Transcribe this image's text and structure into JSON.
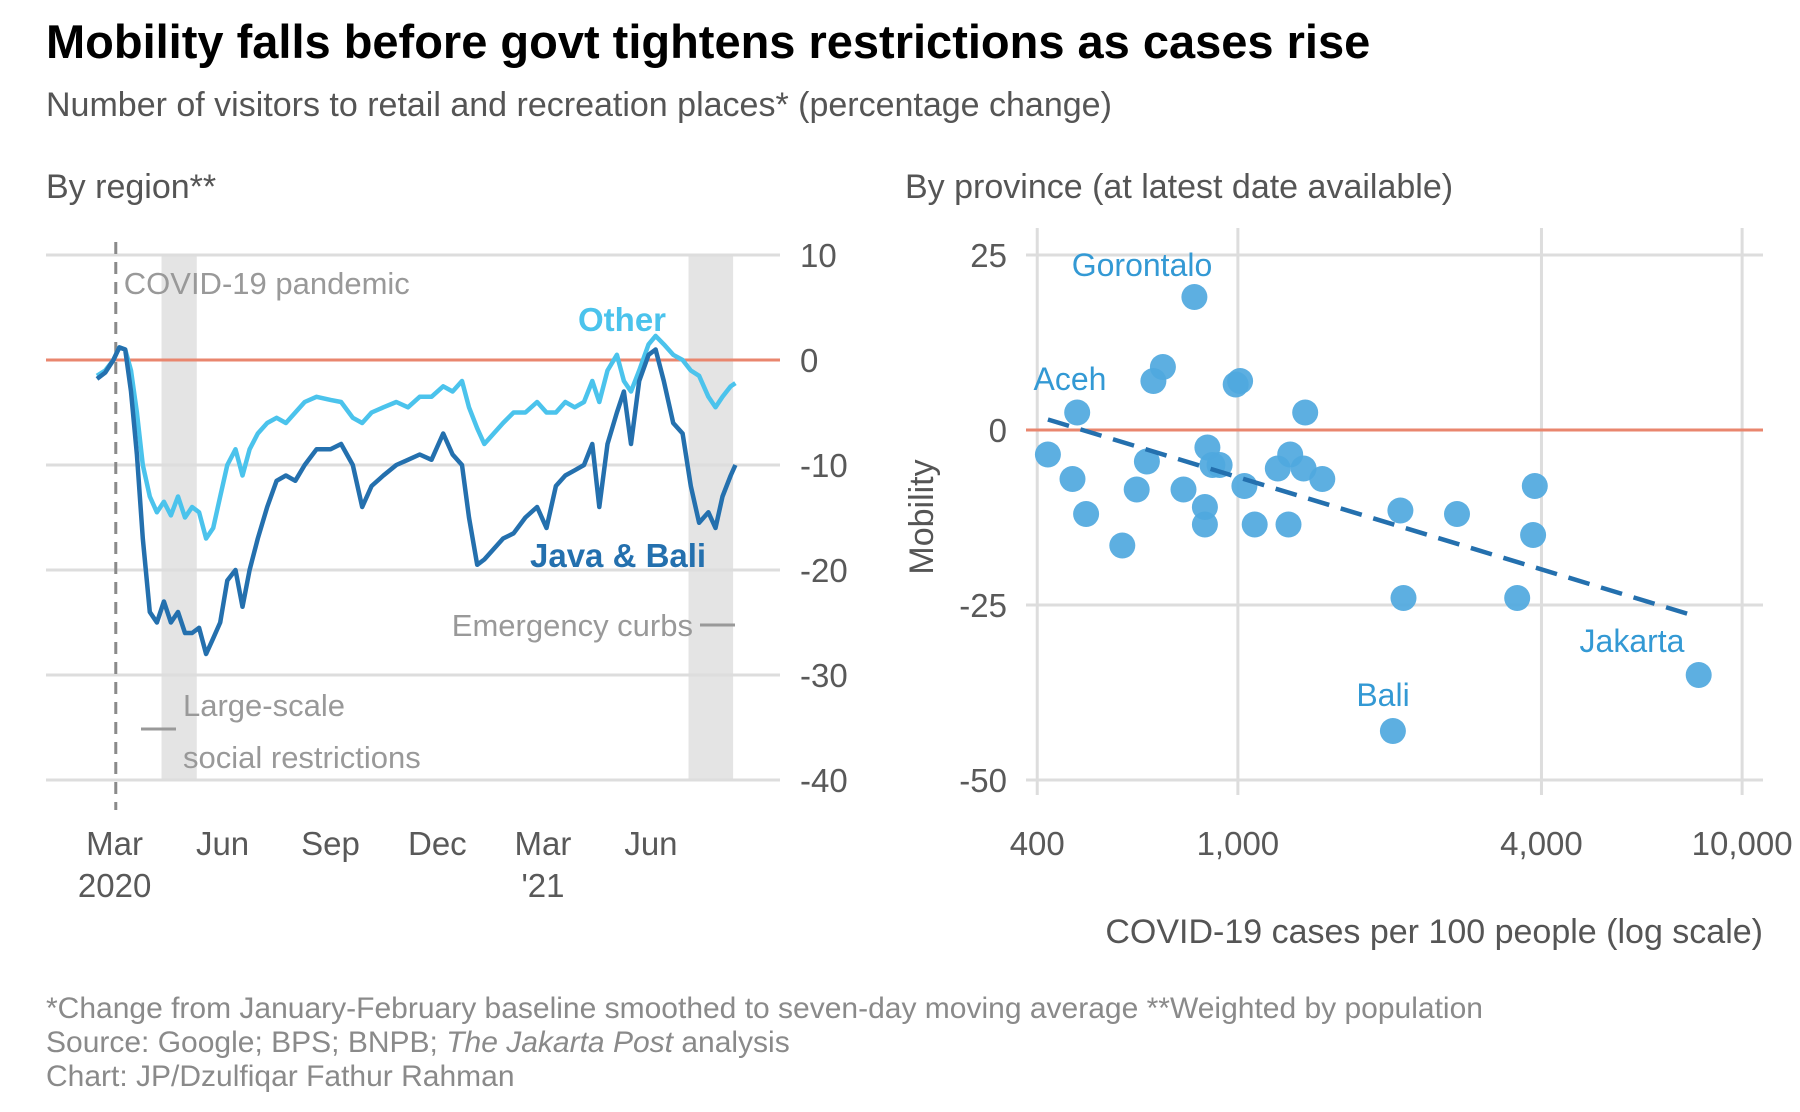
{
  "header": {
    "title": "Mobility falls before govt tightens restrictions as cases rise",
    "subtitle": "Number of visitors to retail and recreation places* (percentage change)"
  },
  "colors": {
    "java_bali": "#2470AE",
    "other": "#4BC3EC",
    "scatter_point": "#4FA8DE",
    "label": "#3399D4",
    "zero_line": "#E9866E",
    "grid": "#DDDDDD",
    "shade": "#E4E4E4",
    "annotation": "#999999",
    "axis_text": "#595959"
  },
  "chart_data": [
    {
      "type": "line",
      "heading": "By region**",
      "ylim": [
        -40,
        10
      ],
      "yticks": [
        10,
        0,
        -10,
        -20,
        -30,
        -40
      ],
      "xlim": [
        "2020-02-15",
        "2021-08-21"
      ],
      "xticks": [
        {
          "date": "2020-03-01",
          "label": [
            "Mar",
            "2020"
          ]
        },
        {
          "date": "2020-06-01",
          "label": [
            "Jun"
          ]
        },
        {
          "date": "2020-09-01",
          "label": [
            "Sep"
          ]
        },
        {
          "date": "2020-12-01",
          "label": [
            "Dec"
          ]
        },
        {
          "date": "2021-03-01",
          "label": [
            "Mar",
            "'21"
          ]
        },
        {
          "date": "2021-06-01",
          "label": [
            "Jun"
          ]
        }
      ],
      "shaded_periods": [
        {
          "start": "2020-04-10",
          "end": "2020-05-10"
        },
        {
          "start": "2021-07-03",
          "end": "2021-08-10"
        }
      ],
      "event_line": {
        "date": "2020-03-02",
        "label": "COVID-19 pandemic"
      },
      "annotations": {
        "emergency": "Emergency curbs",
        "large_scale": [
          "Large-scale",
          "social restrictions"
        ]
      },
      "series": [
        {
          "name": "Other",
          "points": [
            [
              "2020-02-15",
              -1.5
            ],
            [
              "2020-02-22",
              -1
            ],
            [
              "2020-02-29",
              0
            ],
            [
              "2020-03-05",
              1.2
            ],
            [
              "2020-03-10",
              1
            ],
            [
              "2020-03-15",
              -1
            ],
            [
              "2020-03-20",
              -5
            ],
            [
              "2020-03-25",
              -10
            ],
            [
              "2020-03-31",
              -13
            ],
            [
              "2020-04-06",
              -14.5
            ],
            [
              "2020-04-12",
              -13.5
            ],
            [
              "2020-04-18",
              -14.8
            ],
            [
              "2020-04-24",
              -13
            ],
            [
              "2020-04-30",
              -15
            ],
            [
              "2020-05-06",
              -14
            ],
            [
              "2020-05-12",
              -14.5
            ],
            [
              "2020-05-18",
              -17
            ],
            [
              "2020-05-24",
              -16
            ],
            [
              "2020-05-30",
              -13
            ],
            [
              "2020-06-05",
              -10
            ],
            [
              "2020-06-12",
              -8.5
            ],
            [
              "2020-06-18",
              -11
            ],
            [
              "2020-06-24",
              -8.5
            ],
            [
              "2020-07-01",
              -7
            ],
            [
              "2020-07-09",
              -6
            ],
            [
              "2020-07-17",
              -5.5
            ],
            [
              "2020-07-25",
              -6
            ],
            [
              "2020-08-02",
              -5
            ],
            [
              "2020-08-10",
              -4
            ],
            [
              "2020-08-20",
              -3.5
            ],
            [
              "2020-09-01",
              -3.8
            ],
            [
              "2020-09-10",
              -4
            ],
            [
              "2020-09-20",
              -5.5
            ],
            [
              "2020-09-28",
              -6
            ],
            [
              "2020-10-06",
              -5
            ],
            [
              "2020-10-16",
              -4.5
            ],
            [
              "2020-10-27",
              -4
            ],
            [
              "2020-11-06",
              -4.5
            ],
            [
              "2020-11-16",
              -3.5
            ],
            [
              "2020-11-26",
              -3.5
            ],
            [
              "2020-12-06",
              -2.5
            ],
            [
              "2020-12-14",
              -3
            ],
            [
              "2020-12-22",
              -2
            ],
            [
              "2020-12-28",
              -4.5
            ],
            [
              "2021-01-04",
              -6.5
            ],
            [
              "2021-01-10",
              -8
            ],
            [
              "2021-01-18",
              -7
            ],
            [
              "2021-01-26",
              -6
            ],
            [
              "2021-02-04",
              -5
            ],
            [
              "2021-02-14",
              -5
            ],
            [
              "2021-02-24",
              -4
            ],
            [
              "2021-03-04",
              -5
            ],
            [
              "2021-03-12",
              -5
            ],
            [
              "2021-03-20",
              -4
            ],
            [
              "2021-03-28",
              -4.5
            ],
            [
              "2021-04-05",
              -4
            ],
            [
              "2021-04-12",
              -2
            ],
            [
              "2021-04-18",
              -4
            ],
            [
              "2021-04-25",
              -1
            ],
            [
              "2021-05-03",
              0.5
            ],
            [
              "2021-05-09",
              -2
            ],
            [
              "2021-05-15",
              -3
            ],
            [
              "2021-05-22",
              -1
            ],
            [
              "2021-05-30",
              1.5
            ],
            [
              "2021-06-05",
              2.3
            ],
            [
              "2021-06-12",
              1.5
            ],
            [
              "2021-06-20",
              0.5
            ],
            [
              "2021-06-28",
              0
            ],
            [
              "2021-07-05",
              -1
            ],
            [
              "2021-07-12",
              -1.5
            ],
            [
              "2021-07-20",
              -3.5
            ],
            [
              "2021-07-26",
              -4.5
            ],
            [
              "2021-08-01",
              -3.5
            ],
            [
              "2021-08-08",
              -2.5
            ],
            [
              "2021-08-12",
              -2.2
            ]
          ]
        },
        {
          "name": "Java & Bali",
          "points": [
            [
              "2020-02-15",
              -1.8
            ],
            [
              "2020-02-22",
              -1.2
            ],
            [
              "2020-02-29",
              0
            ],
            [
              "2020-03-05",
              1.2
            ],
            [
              "2020-03-10",
              1
            ],
            [
              "2020-03-15",
              -3
            ],
            [
              "2020-03-20",
              -9
            ],
            [
              "2020-03-25",
              -17
            ],
            [
              "2020-03-31",
              -24
            ],
            [
              "2020-04-06",
              -25
            ],
            [
              "2020-04-12",
              -23
            ],
            [
              "2020-04-18",
              -25
            ],
            [
              "2020-04-24",
              -24
            ],
            [
              "2020-04-30",
              -26
            ],
            [
              "2020-05-06",
              -26
            ],
            [
              "2020-05-12",
              -25.5
            ],
            [
              "2020-05-18",
              -28
            ],
            [
              "2020-05-24",
              -26.5
            ],
            [
              "2020-05-30",
              -25
            ],
            [
              "2020-06-05",
              -21
            ],
            [
              "2020-06-12",
              -20
            ],
            [
              "2020-06-18",
              -23.5
            ],
            [
              "2020-06-24",
              -20
            ],
            [
              "2020-07-01",
              -17
            ],
            [
              "2020-07-09",
              -14
            ],
            [
              "2020-07-17",
              -11.5
            ],
            [
              "2020-07-25",
              -11
            ],
            [
              "2020-08-02",
              -11.5
            ],
            [
              "2020-08-10",
              -10
            ],
            [
              "2020-08-20",
              -8.5
            ],
            [
              "2020-09-01",
              -8.5
            ],
            [
              "2020-09-10",
              -8
            ],
            [
              "2020-09-20",
              -10
            ],
            [
              "2020-09-28",
              -14
            ],
            [
              "2020-10-06",
              -12
            ],
            [
              "2020-10-16",
              -11
            ],
            [
              "2020-10-27",
              -10
            ],
            [
              "2020-11-06",
              -9.5
            ],
            [
              "2020-11-16",
              -9
            ],
            [
              "2020-11-26",
              -9.5
            ],
            [
              "2020-12-06",
              -7
            ],
            [
              "2020-12-14",
              -9
            ],
            [
              "2020-12-22",
              -10
            ],
            [
              "2020-12-28",
              -15
            ],
            [
              "2021-01-04",
              -19.5
            ],
            [
              "2021-01-10",
              -19
            ],
            [
              "2021-01-18",
              -18
            ],
            [
              "2021-01-26",
              -17
            ],
            [
              "2021-02-04",
              -16.5
            ],
            [
              "2021-02-14",
              -15
            ],
            [
              "2021-02-24",
              -14
            ],
            [
              "2021-03-04",
              -16
            ],
            [
              "2021-03-12",
              -12
            ],
            [
              "2021-03-20",
              -11
            ],
            [
              "2021-03-28",
              -10.5
            ],
            [
              "2021-04-05",
              -10
            ],
            [
              "2021-04-12",
              -8
            ],
            [
              "2021-04-18",
              -14
            ],
            [
              "2021-04-25",
              -8
            ],
            [
              "2021-05-03",
              -5
            ],
            [
              "2021-05-09",
              -3
            ],
            [
              "2021-05-15",
              -8
            ],
            [
              "2021-05-22",
              -2
            ],
            [
              "2021-05-30",
              0.5
            ],
            [
              "2021-06-05",
              1
            ],
            [
              "2021-06-12",
              -2
            ],
            [
              "2021-06-20",
              -6
            ],
            [
              "2021-06-28",
              -7
            ],
            [
              "2021-07-05",
              -12
            ],
            [
              "2021-07-12",
              -15.5
            ],
            [
              "2021-07-20",
              -14.5
            ],
            [
              "2021-07-26",
              -16
            ],
            [
              "2021-08-01",
              -13
            ],
            [
              "2021-08-08",
              -11
            ],
            [
              "2021-08-12",
              -10
            ]
          ]
        }
      ]
    },
    {
      "type": "scatter",
      "heading": "By province (at latest date available)",
      "xlabel": "COVID-19 cases per 100 people (log scale)",
      "ylabel": "Mobility",
      "x_scale": "log",
      "xlim": [
        380,
        11000
      ],
      "ylim": [
        -50,
        25
      ],
      "xticks": [
        {
          "value": 400,
          "label": "400"
        },
        {
          "value": 1000,
          "label": "1,000"
        },
        {
          "value": 4000,
          "label": "4,000"
        },
        {
          "value": 10000,
          "label": "10,000"
        }
      ],
      "yticks": [
        25,
        0,
        -25,
        -50
      ],
      "x_gridlines": [
        400,
        1000,
        4000,
        10000
      ],
      "trendline": {
        "x": [
          420,
          8000
        ],
        "y": [
          1.5,
          -26.5
        ]
      },
      "labels": {
        "gorontalo": "Gorontalo",
        "aceh": "Aceh",
        "jakarta": "Jakarta",
        "bali": "Bali"
      },
      "points": [
        {
          "x": 420,
          "y": -3.5
        },
        {
          "x": 470,
          "y": -7
        },
        {
          "x": 480,
          "y": 2.5
        },
        {
          "x": 500,
          "y": -12
        },
        {
          "x": 590,
          "y": -16.5
        },
        {
          "x": 630,
          "y": -8.5
        },
        {
          "x": 660,
          "y": -4.5
        },
        {
          "x": 680,
          "y": 7
        },
        {
          "x": 710,
          "y": 9
        },
        {
          "x": 780,
          "y": -8.5
        },
        {
          "x": 820,
          "y": 19
        },
        {
          "x": 860,
          "y": -13.5
        },
        {
          "x": 860,
          "y": -11
        },
        {
          "x": 870,
          "y": -2.5
        },
        {
          "x": 890,
          "y": -5
        },
        {
          "x": 920,
          "y": -5
        },
        {
          "x": 990,
          "y": 6.5
        },
        {
          "x": 1010,
          "y": 7
        },
        {
          "x": 1030,
          "y": -8
        },
        {
          "x": 1080,
          "y": -13.5
        },
        {
          "x": 1200,
          "y": -5.5
        },
        {
          "x": 1260,
          "y": -13.5
        },
        {
          "x": 1270,
          "y": -3.5
        },
        {
          "x": 1350,
          "y": -5.5
        },
        {
          "x": 1360,
          "y": 2.5
        },
        {
          "x": 1470,
          "y": -7
        },
        {
          "x": 2030,
          "y": -43
        },
        {
          "x": 2100,
          "y": -11.5
        },
        {
          "x": 2130,
          "y": -24
        },
        {
          "x": 2720,
          "y": -12
        },
        {
          "x": 3580,
          "y": -24
        },
        {
          "x": 3850,
          "y": -15
        },
        {
          "x": 3880,
          "y": -8
        },
        {
          "x": 8200,
          "y": -35
        }
      ]
    }
  ],
  "footer": {
    "footnote": "*Change from January-February baseline smoothed to seven-day moving average **Weighted by population",
    "source_prefix": "Source: Google; BPS; BNPB; ",
    "source_italic": "The Jakarta Post",
    "source_suffix": " analysis",
    "credit": "Chart: JP/Dzulfiqar Fathur Rahman"
  }
}
